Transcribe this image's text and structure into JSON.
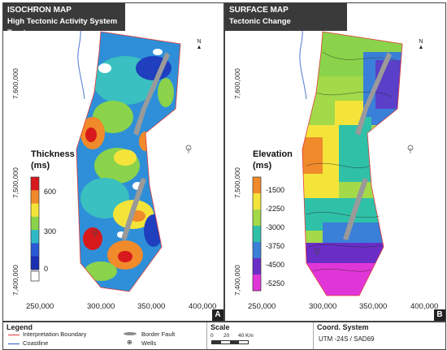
{
  "panel_a": {
    "title": "ISOCHRON MAP",
    "subtitle": "High Tectonic Activity System Tract",
    "colorbar_title_1": "Thickness",
    "colorbar_title_2": "(ms)",
    "colorbar_ticks": [
      "600",
      "300",
      "0"
    ],
    "colorbar_colors": [
      "#d7191c",
      "#f08a2b",
      "#f4e43a",
      "#8ad34a",
      "#2fb8c5",
      "#2b5ad6",
      "#1a2fb3"
    ],
    "letter": "A"
  },
  "panel_b": {
    "title": "SURFACE MAP",
    "subtitle": "Tectonic Change",
    "colorbar_title_1": "Elevation",
    "colorbar_title_2": "(ms)",
    "colorbar_ticks": [
      "-1500",
      "-2250",
      "-3000",
      "-3750",
      "-4500",
      "-5250"
    ],
    "colorbar_colors": [
      "#f08a2b",
      "#f4e43a",
      "#a4d94a",
      "#2fc0a8",
      "#3a7fd8",
      "#6a2ec6",
      "#e036d8"
    ],
    "letter": "B"
  },
  "axes": {
    "y_ticks": [
      "7,600,000",
      "7,500,000",
      "7,400,000"
    ],
    "x_ticks": [
      "250,000",
      "300,000",
      "350,000",
      "400,000"
    ]
  },
  "north_label": "N",
  "legend": {
    "title": "Legend",
    "items": {
      "interpretation_boundary": "Interpretation Boundary",
      "coastline": "Coastline",
      "border_fault": "Border Fault",
      "wells": "Wells"
    },
    "colors": {
      "boundary": "#e23b3b",
      "coastline": "#2e55c8",
      "fault": "#8c8c8c"
    }
  },
  "scale": {
    "title": "Scale",
    "ticks": [
      "0",
      "20",
      "40 Km"
    ]
  },
  "coord_system": {
    "title": "Coord. System",
    "value": "UTM -24S / SAD69"
  }
}
